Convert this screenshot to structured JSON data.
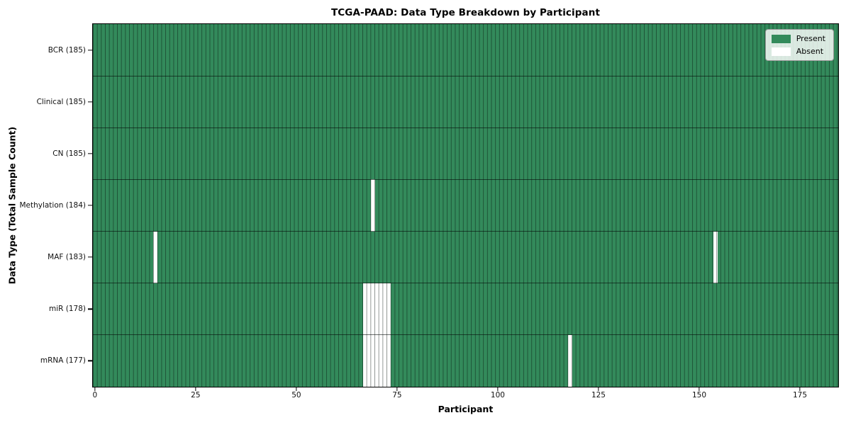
{
  "chart_data": {
    "type": "heatmap",
    "title": "TCGA-PAAD: Data Type Breakdown by Participant",
    "xlabel": "Participant",
    "ylabel": "Data Type (Total Sample Count)",
    "n_participants": 185,
    "xlim": [
      -0.5,
      184.5
    ],
    "x_ticks": [
      0,
      25,
      50,
      75,
      100,
      125,
      150,
      175
    ],
    "grid": "per-cell vertical separators and row separators",
    "colors": {
      "present": "#338a5b",
      "absent": "#ffffff",
      "cell_edge": "rgba(5,15,10,0.45)",
      "plot_border": "#000000"
    },
    "legend": {
      "position": "upper right",
      "entries": [
        {
          "label": "Present",
          "color": "#338a5b"
        },
        {
          "label": "Absent",
          "color": "#ffffff"
        }
      ]
    },
    "rows": [
      {
        "label": "BCR (185)",
        "name": "BCR",
        "total_samples": 185,
        "absent_participants": []
      },
      {
        "label": "Clinical (185)",
        "name": "Clinical",
        "total_samples": 185,
        "absent_participants": []
      },
      {
        "label": "CN (185)",
        "name": "CN",
        "total_samples": 185,
        "absent_participants": []
      },
      {
        "label": "Methylation (184)",
        "name": "Methylation",
        "total_samples": 184,
        "absent_participants": [
          69
        ]
      },
      {
        "label": "MAF (183)",
        "name": "MAF",
        "total_samples": 183,
        "absent_participants": [
          15,
          154
        ]
      },
      {
        "label": "miR (178)",
        "name": "miR",
        "total_samples": 178,
        "absent_participants": [
          67,
          68,
          69,
          70,
          71,
          72,
          73
        ]
      },
      {
        "label": "mRNA (177)",
        "name": "mRNA",
        "total_samples": 177,
        "absent_participants": [
          67,
          68,
          69,
          70,
          71,
          72,
          73,
          118
        ]
      }
    ]
  }
}
